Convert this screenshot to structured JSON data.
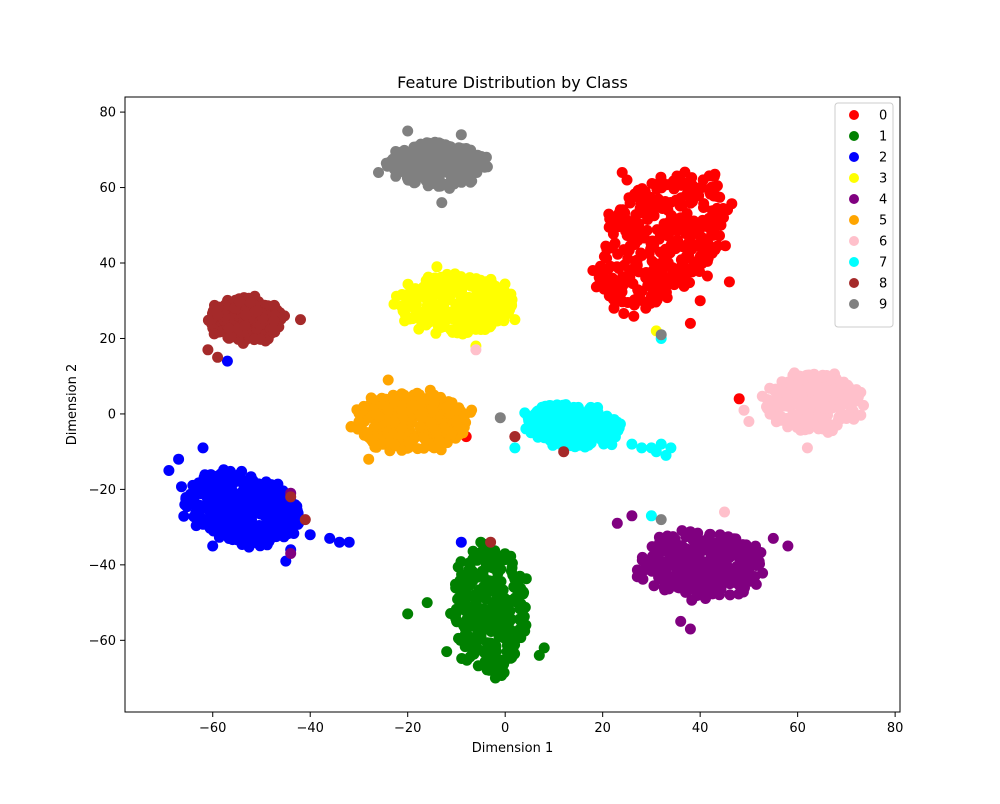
{
  "chart_data": {
    "type": "scatter",
    "title": "Feature Distribution by Class",
    "xlabel": "Dimension 1",
    "ylabel": "Dimension 2",
    "xlim": [
      -78,
      81
    ],
    "ylim": [
      -79,
      84
    ],
    "xticks": [
      -60,
      -40,
      -20,
      0,
      20,
      40,
      60,
      80
    ],
    "yticks": [
      -60,
      -40,
      -20,
      0,
      20,
      40,
      60,
      80
    ],
    "grid": false,
    "legend_position": "top-right",
    "series": [
      {
        "name": "0",
        "color": "#ff0000",
        "cx": 32,
        "cy": 46,
        "rx": 12,
        "ry": 20,
        "n": 380,
        "rot": -25,
        "extra": [
          [
            25,
            62
          ],
          [
            24,
            64
          ],
          [
            36,
            52
          ],
          [
            40,
            30
          ],
          [
            38,
            24
          ],
          [
            22,
            36
          ],
          [
            46,
            35
          ],
          [
            -8,
            -6
          ],
          [
            2,
            -6
          ],
          [
            48,
            4
          ],
          [
            22,
            44
          ]
        ]
      },
      {
        "name": "1",
        "color": "#008000",
        "cx": -3,
        "cy": -52,
        "rx": 8,
        "ry": 17,
        "n": 280,
        "rot": 0,
        "extra": [
          [
            -20,
            -53
          ],
          [
            -16,
            -50
          ],
          [
            7,
            -64
          ],
          [
            8,
            -62
          ],
          [
            -12,
            -63
          ],
          [
            -2,
            -70
          ],
          [
            -3,
            -36
          ],
          [
            -5,
            -34
          ]
        ]
      },
      {
        "name": "2",
        "color": "#0000ff",
        "cx": -54,
        "cy": -25,
        "rx": 13,
        "ry": 9,
        "n": 360,
        "rot": -22,
        "extra": [
          [
            -69,
            -15
          ],
          [
            -62,
            -9
          ],
          [
            -67,
            -12
          ],
          [
            -40,
            -32
          ],
          [
            -34,
            -34
          ],
          [
            -36,
            -33
          ],
          [
            -32,
            -34
          ],
          [
            -44,
            -36
          ],
          [
            -57,
            14
          ],
          [
            -9,
            -34
          ],
          [
            -45,
            -39
          ],
          [
            -60,
            -35
          ]
        ]
      },
      {
        "name": "3",
        "color": "#ffff00",
        "cx": -10,
        "cy": 29,
        "rx": 12,
        "ry": 8,
        "n": 280,
        "rot": 0,
        "extra": [
          [
            -21,
            28
          ],
          [
            2,
            25
          ],
          [
            -14,
            39
          ],
          [
            -6,
            18
          ],
          [
            31,
            22
          ]
        ]
      },
      {
        "name": "4",
        "color": "#800080",
        "cx": 40,
        "cy": -40,
        "rx": 13,
        "ry": 9,
        "n": 300,
        "rot": 0,
        "extra": [
          [
            23,
            -29
          ],
          [
            26,
            -27
          ],
          [
            58,
            -35
          ],
          [
            55,
            -33
          ],
          [
            36,
            -55
          ],
          [
            38,
            -57
          ],
          [
            -44,
            -37
          ],
          [
            -44,
            -21
          ]
        ]
      },
      {
        "name": "5",
        "color": "#ffa500",
        "cx": -19,
        "cy": -2,
        "rx": 12,
        "ry": 8,
        "n": 300,
        "rot": 0,
        "extra": [
          [
            -30,
            -2
          ],
          [
            -29,
            2
          ],
          [
            -10,
            1
          ],
          [
            -11,
            -5
          ],
          [
            -24,
            9
          ],
          [
            -28,
            -12
          ]
        ]
      },
      {
        "name": "6",
        "color": "#ffc0cb",
        "cx": 63,
        "cy": 3,
        "rx": 10,
        "ry": 8,
        "n": 280,
        "rot": 0,
        "extra": [
          [
            49,
            1
          ],
          [
            50,
            -2
          ],
          [
            72,
            5
          ],
          [
            62,
            -9
          ],
          [
            45,
            -26
          ],
          [
            -6,
            17
          ]
        ]
      },
      {
        "name": "7",
        "color": "#00ffff",
        "cx": 14,
        "cy": -3,
        "rx": 10,
        "ry": 6,
        "n": 260,
        "rot": -10,
        "extra": [
          [
            26,
            -8
          ],
          [
            28,
            -9
          ],
          [
            30,
            -9
          ],
          [
            31,
            -10
          ],
          [
            32,
            -8
          ],
          [
            33,
            -11
          ],
          [
            34,
            -9
          ],
          [
            30,
            -27
          ],
          [
            32,
            20
          ],
          [
            2,
            -9
          ]
        ]
      },
      {
        "name": "8",
        "color": "#a52a2a",
        "cx": -53,
        "cy": 25,
        "rx": 8,
        "ry": 6,
        "n": 220,
        "rot": 0,
        "extra": [
          [
            -59,
            15
          ],
          [
            -61,
            17
          ],
          [
            -42,
            25
          ],
          [
            12,
            -10
          ],
          [
            2,
            -6
          ],
          [
            -41,
            -28
          ],
          [
            -3,
            -34
          ],
          [
            -44,
            -22
          ]
        ]
      },
      {
        "name": "9",
        "color": "#808080",
        "cx": -14,
        "cy": 66,
        "rx": 10,
        "ry": 6,
        "n": 240,
        "rot": 0,
        "extra": [
          [
            -26,
            64
          ],
          [
            -20,
            75
          ],
          [
            -13,
            56
          ],
          [
            -9,
            74
          ],
          [
            -1,
            -1
          ],
          [
            32,
            -28
          ],
          [
            32,
            21
          ]
        ]
      }
    ]
  }
}
